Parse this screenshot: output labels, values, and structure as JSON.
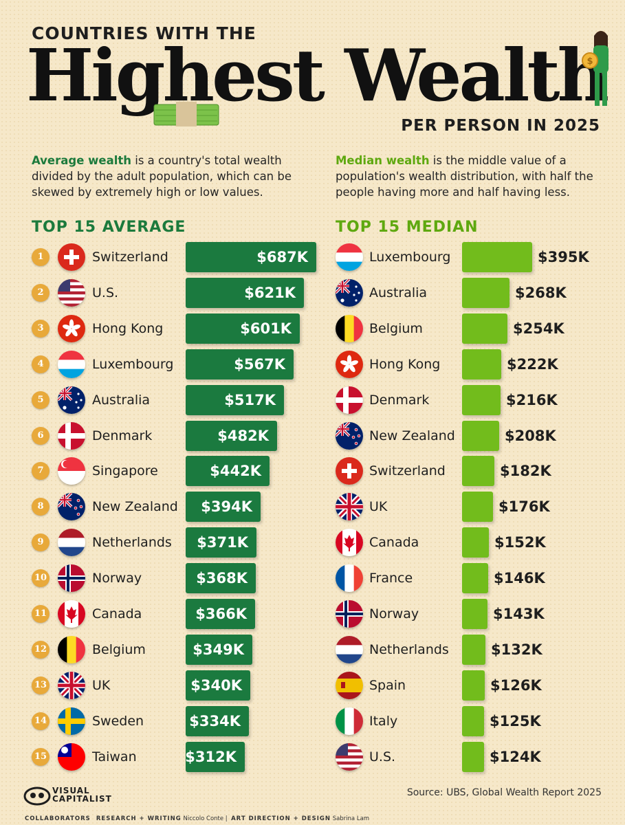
{
  "header": {
    "kicker": "COUNTRIES WITH THE",
    "headline": "Highest Wealth",
    "subtitle": "PER PERSON IN 2025"
  },
  "definitions": {
    "average_term": "Average wealth",
    "average_text": " is a country's total wealth divided by the adult population, which can be skewed by extremely high or low values.",
    "median_term": "Median wealth",
    "median_text": " is the middle value of a population's wealth distribution, with half the people having more and half having less."
  },
  "colors": {
    "background": "#f6e8c9",
    "average_bar": "#1b7a3f",
    "median_bar": "#72bc1c",
    "rank_badge": "#e8a93a"
  },
  "chart_data": [
    {
      "type": "bar",
      "title": "TOP 15 AVERAGE",
      "unit": "$K",
      "categories": [
        "Switzerland",
        "U.S.",
        "Hong Kong",
        "Luxembourg",
        "Australia",
        "Denmark",
        "Singapore",
        "New Zealand",
        "Netherlands",
        "Norway",
        "Canada",
        "Belgium",
        "UK",
        "Sweden",
        "Taiwan"
      ],
      "values": [
        687,
        621,
        601,
        567,
        517,
        482,
        442,
        394,
        371,
        368,
        366,
        349,
        340,
        334,
        312
      ],
      "labels": [
        "$687K",
        "$621K",
        "$601K",
        "$567K",
        "$517K",
        "$482K",
        "$442K",
        "$394K",
        "$371K",
        "$368K",
        "$366K",
        "$349K",
        "$340K",
        "$334K",
        "$312K"
      ],
      "ranks": [
        "1",
        "2",
        "3",
        "4",
        "5",
        "6",
        "7",
        "8",
        "9",
        "10",
        "11",
        "12",
        "13",
        "14",
        "15"
      ],
      "flags": [
        "switzerland-flag",
        "us-flag",
        "hong-kong-flag",
        "luxembourg-flag",
        "australia-flag",
        "denmark-flag",
        "singapore-flag",
        "new-zealand-flag",
        "netherlands-flag",
        "norway-flag",
        "canada-flag",
        "belgium-flag",
        "uk-flag",
        "sweden-flag",
        "taiwan-flag"
      ]
    },
    {
      "type": "bar",
      "title": "TOP 15 MEDIAN",
      "unit": "$K",
      "categories": [
        "Luxembourg",
        "Australia",
        "Belgium",
        "Hong Kong",
        "Denmark",
        "New Zealand",
        "Switzerland",
        "UK",
        "Canada",
        "France",
        "Norway",
        "Netherlands",
        "Spain",
        "Italy",
        "U.S."
      ],
      "values": [
        395,
        268,
        254,
        222,
        216,
        208,
        182,
        176,
        152,
        146,
        143,
        132,
        126,
        125,
        124
      ],
      "labels": [
        "$395K",
        "$268K",
        "$254K",
        "$222K",
        "$216K",
        "$208K",
        "$182K",
        "$176K",
        "$152K",
        "$146K",
        "$143K",
        "$132K",
        "$126K",
        "$125K",
        "$124K"
      ],
      "flags": [
        "luxembourg-flag",
        "australia-flag",
        "belgium-flag",
        "hong-kong-flag",
        "denmark-flag",
        "new-zealand-flag",
        "switzerland-flag",
        "uk-flag",
        "canada-flag",
        "france-flag",
        "norway-flag",
        "netherlands-flag",
        "spain-flag",
        "italy-flag",
        "us-flag"
      ]
    }
  ],
  "footer": {
    "logo_line1": "VISUAL",
    "logo_line2": "CAPITALIST",
    "source": "Source: UBS, Global Wealth Report 2025",
    "collaborators_label": "COLLABORATORS",
    "research_label": "RESEARCH + WRITING",
    "research_name": "Niccolo Conte",
    "art_label": "ART DIRECTION + DESIGN",
    "art_name": "Sabrina Lam"
  }
}
